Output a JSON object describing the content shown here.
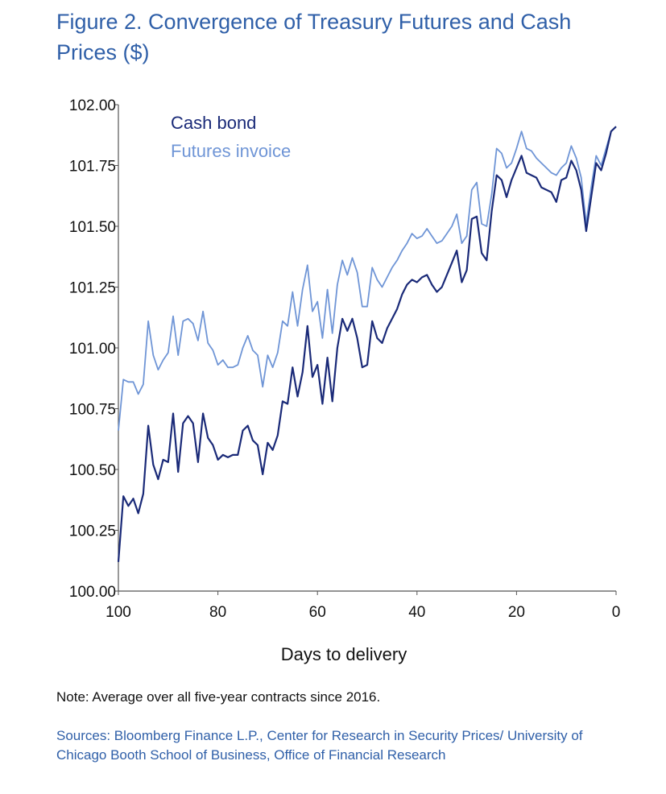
{
  "figure": {
    "title": "Figure 2. Convergence of Treasury Futures and Cash Prices ($)",
    "note": "Note: Average over all five-year contracts since 2016.",
    "sources": "Sources: Bloomberg Finance L.P., Center for Research in Security Prices/ University of Chicago Booth School of Business, Office of Financial Research"
  },
  "colors": {
    "cash": "#1a2a78",
    "futures": "#6f95d6",
    "axis": "#555555"
  },
  "chart_data": {
    "type": "line",
    "title": "Convergence of Treasury Futures and Cash Prices ($)",
    "xlabel": "Days to delivery",
    "ylabel": "",
    "xlim": [
      100,
      0
    ],
    "ylim": [
      100.0,
      102.0
    ],
    "x_ticks": [
      100,
      80,
      60,
      40,
      20,
      0
    ],
    "y_ticks": [
      100.0,
      100.25,
      100.5,
      100.75,
      101.0,
      101.25,
      101.5,
      101.75,
      102.0
    ],
    "y_tick_labels": [
      "100.00",
      "100.25",
      "100.50",
      "100.75",
      "101.00",
      "101.25",
      "101.50",
      "101.75",
      "102.00"
    ],
    "legend_position": "top-left",
    "grid": false,
    "x": [
      100,
      99,
      98,
      97,
      96,
      95,
      94,
      93,
      92,
      91,
      90,
      89,
      88,
      87,
      86,
      85,
      84,
      83,
      82,
      81,
      80,
      79,
      78,
      77,
      76,
      75,
      74,
      73,
      72,
      71,
      70,
      69,
      68,
      67,
      66,
      65,
      64,
      63,
      62,
      61,
      60,
      59,
      58,
      57,
      56,
      55,
      54,
      53,
      52,
      51,
      50,
      49,
      48,
      47,
      46,
      45,
      44,
      43,
      42,
      41,
      40,
      39,
      38,
      37,
      36,
      35,
      34,
      33,
      32,
      31,
      30,
      29,
      28,
      27,
      26,
      25,
      24,
      23,
      22,
      21,
      20,
      19,
      18,
      17,
      16,
      15,
      14,
      13,
      12,
      11,
      10,
      9,
      8,
      7,
      6,
      5,
      4,
      3,
      2,
      1,
      0
    ],
    "series": [
      {
        "name": "Cash bond",
        "key": "cash",
        "values": [
          100.12,
          100.39,
          100.35,
          100.38,
          100.32,
          100.4,
          100.68,
          100.52,
          100.46,
          100.54,
          100.53,
          100.73,
          100.49,
          100.69,
          100.72,
          100.69,
          100.53,
          100.73,
          100.63,
          100.6,
          100.54,
          100.56,
          100.55,
          100.56,
          100.56,
          100.66,
          100.68,
          100.62,
          100.6,
          100.48,
          100.61,
          100.58,
          100.64,
          100.78,
          100.77,
          100.92,
          100.8,
          100.9,
          101.09,
          100.88,
          100.93,
          100.77,
          100.96,
          100.78,
          101.0,
          101.12,
          101.07,
          101.12,
          101.04,
          100.92,
          100.93,
          101.11,
          101.04,
          101.02,
          101.08,
          101.12,
          101.16,
          101.22,
          101.26,
          101.28,
          101.27,
          101.29,
          101.3,
          101.26,
          101.23,
          101.25,
          101.3,
          101.35,
          101.4,
          101.27,
          101.32,
          101.53,
          101.54,
          101.39,
          101.36,
          101.56,
          101.71,
          101.69,
          101.62,
          101.69,
          101.74,
          101.79,
          101.72,
          101.71,
          101.7,
          101.66,
          101.65,
          101.64,
          101.6,
          101.69,
          101.7,
          101.77,
          101.73,
          101.65,
          101.48,
          101.62,
          101.76,
          101.73,
          101.8,
          101.89,
          101.91
        ]
      },
      {
        "name": "Futures invoice",
        "key": "futures",
        "values": [
          100.66,
          100.87,
          100.86,
          100.86,
          100.81,
          100.85,
          101.11,
          100.97,
          100.91,
          100.95,
          100.98,
          101.13,
          100.97,
          101.11,
          101.12,
          101.1,
          101.03,
          101.15,
          101.02,
          100.99,
          100.93,
          100.95,
          100.92,
          100.92,
          100.93,
          101.0,
          101.05,
          100.99,
          100.97,
          100.84,
          100.97,
          100.92,
          100.98,
          101.11,
          101.09,
          101.23,
          101.09,
          101.24,
          101.34,
          101.15,
          101.19,
          101.04,
          101.24,
          101.06,
          101.26,
          101.36,
          101.3,
          101.37,
          101.31,
          101.17,
          101.17,
          101.33,
          101.28,
          101.25,
          101.29,
          101.33,
          101.36,
          101.4,
          101.43,
          101.47,
          101.45,
          101.46,
          101.49,
          101.46,
          101.43,
          101.44,
          101.47,
          101.5,
          101.55,
          101.43,
          101.46,
          101.65,
          101.68,
          101.51,
          101.5,
          101.63,
          101.82,
          101.8,
          101.74,
          101.76,
          101.82,
          101.89,
          101.82,
          101.81,
          101.78,
          101.76,
          101.74,
          101.72,
          101.71,
          101.74,
          101.76,
          101.83,
          101.78,
          101.7,
          101.51,
          101.66,
          101.79,
          101.75,
          101.82,
          101.89,
          101.91
        ]
      }
    ]
  }
}
